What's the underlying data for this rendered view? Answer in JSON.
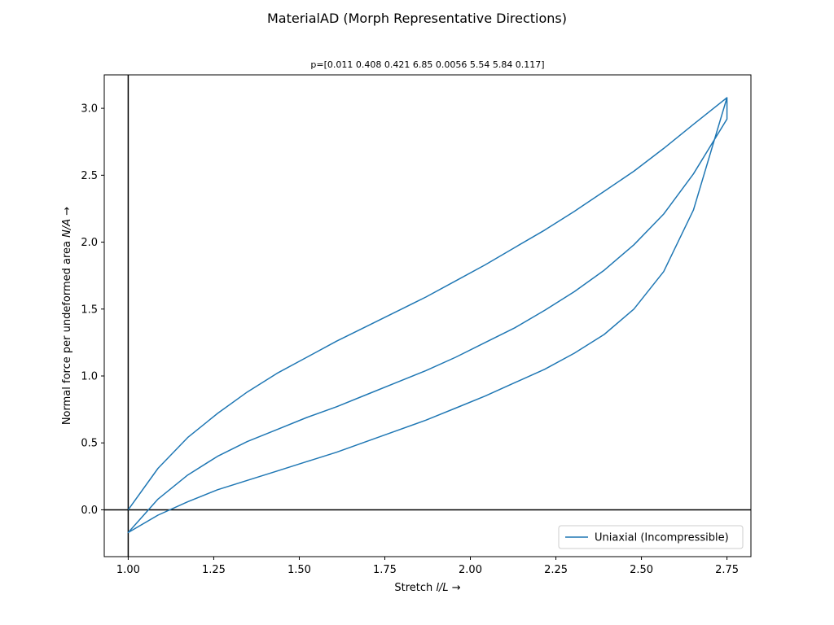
{
  "chart_data": {
    "type": "line",
    "title": "MaterialAD (Morph Representative Directions)",
    "subtitle": "p=[0.011 0.408 0.421 6.85 0.0056 5.54 5.84 0.117]",
    "xlabel": "Stretch l/L",
    "xlabel_parts": {
      "prefix": "Stretch ",
      "var": "l/L",
      "arrow": "→"
    },
    "ylabel": "Normal force per undeformed area N/A",
    "ylabel_parts": {
      "prefix": "Normal force per undeformed area ",
      "var": "N/A",
      "arrow": "→"
    },
    "xlim": [
      0.93,
      2.82
    ],
    "ylim": [
      -0.35,
      3.25
    ],
    "xticks": [
      1.0,
      1.25,
      1.5,
      1.75,
      2.0,
      2.25,
      2.5,
      2.75
    ],
    "xtick_labels": [
      "1.00",
      "1.25",
      "1.50",
      "1.75",
      "2.00",
      "2.25",
      "2.50",
      "2.75"
    ],
    "yticks": [
      0.0,
      0.5,
      1.0,
      1.5,
      2.0,
      2.5,
      3.0
    ],
    "ytick_labels": [
      "0.0",
      "0.5",
      "1.0",
      "1.5",
      "2.0",
      "2.5",
      "3.0"
    ],
    "reference_lines": {
      "x": 1.0,
      "y": 0.0
    },
    "legend_position": "lower-right",
    "grid": false,
    "colors": {
      "series": "#1f77b4",
      "axes": "#000000"
    },
    "series": [
      {
        "name": "Uniaxial (Incompressible)",
        "x": [
          1.0,
          1.087,
          1.174,
          1.261,
          1.348,
          1.435,
          1.522,
          1.609,
          1.696,
          1.783,
          1.87,
          1.957,
          2.043,
          2.13,
          2.217,
          2.304,
          2.391,
          2.478,
          2.565,
          2.652,
          2.75,
          2.75,
          2.652,
          2.565,
          2.478,
          2.391,
          2.304,
          2.217,
          2.13,
          2.043,
          1.957,
          1.87,
          1.783,
          1.696,
          1.609,
          1.522,
          1.435,
          1.348,
          1.261,
          1.174,
          1.087,
          1.0,
          1.0,
          1.087,
          1.174,
          1.261,
          1.348,
          1.435,
          1.522,
          1.609,
          1.696,
          1.783,
          1.87,
          1.957,
          2.043,
          2.13,
          2.217,
          2.304,
          2.391,
          2.478,
          2.565,
          2.652,
          2.75
        ],
        "y": [
          0.0,
          0.31,
          0.54,
          0.72,
          0.88,
          1.02,
          1.14,
          1.26,
          1.37,
          1.48,
          1.59,
          1.71,
          1.83,
          1.96,
          2.09,
          2.23,
          2.38,
          2.53,
          2.7,
          2.88,
          3.08,
          2.92,
          2.51,
          2.21,
          1.98,
          1.79,
          1.63,
          1.49,
          1.36,
          1.25,
          1.14,
          1.04,
          0.95,
          0.86,
          0.77,
          0.69,
          0.6,
          0.51,
          0.4,
          0.26,
          0.08,
          -0.17,
          -0.17,
          -0.04,
          0.06,
          0.15,
          0.22,
          0.29,
          0.36,
          0.43,
          0.51,
          0.59,
          0.67,
          0.76,
          0.85,
          0.95,
          1.05,
          1.17,
          1.31,
          1.5,
          1.78,
          2.24,
          3.08
        ]
      }
    ]
  }
}
